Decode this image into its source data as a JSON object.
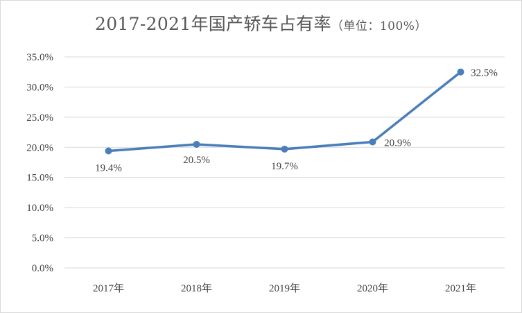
{
  "chart_data": {
    "type": "line",
    "title": "2017-2021年国产轿车占有率",
    "subtitle": "（单位：100%）",
    "categories": [
      "2017年",
      "2018年",
      "2019年",
      "2020年",
      "2021年"
    ],
    "series": [
      {
        "values": [
          19.4,
          20.5,
          19.7,
          20.9,
          32.5
        ],
        "labels": [
          "19.4%",
          "20.5%",
          "19.7%",
          "20.9%",
          "32.5%"
        ],
        "color": "#4a7ebb"
      }
    ],
    "ylim": [
      0,
      35
    ],
    "yticks": [
      0,
      5,
      10,
      15,
      20,
      25,
      30,
      35
    ],
    "ytick_labels": [
      "0.0%",
      "5.0%",
      "10.0%",
      "15.0%",
      "20.0%",
      "25.0%",
      "30.0%",
      "35.0%"
    ],
    "xlabel": "",
    "ylabel": "",
    "grid": true,
    "legend": "none"
  }
}
